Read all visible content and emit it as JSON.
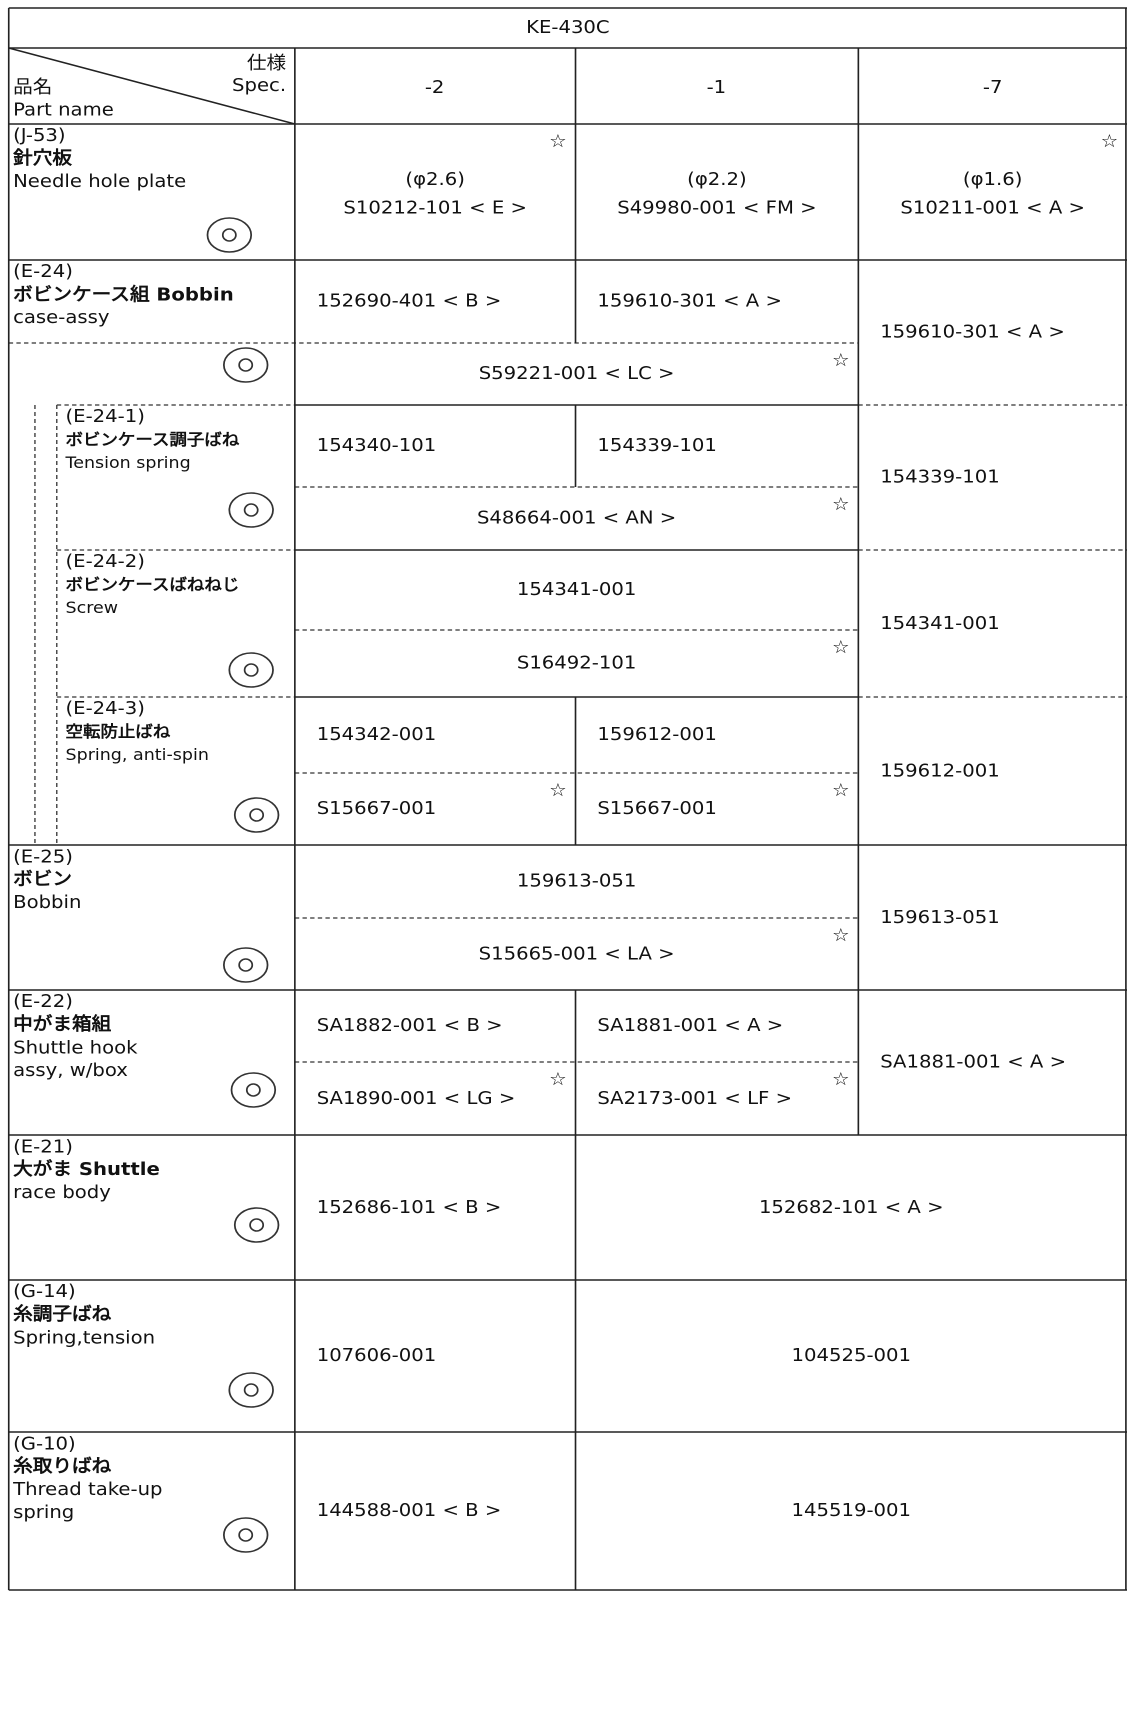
{
  "header": {
    "title": "KE-430C",
    "spec_jp": "仕様",
    "spec_en": "Spec.",
    "part_jp": "品名",
    "part_en": "Part name",
    "columns": [
      "-2",
      "-1",
      "-7"
    ]
  },
  "rows": [
    {
      "label": [
        "(J-53)",
        "針穴板",
        "Needle hole plate"
      ],
      "cells": [
        {
          "spec": "(φ2.6)",
          "text": "S10212-101 < E >",
          "note": "☆"
        },
        {
          "spec": "(φ2.2)",
          "text": "S49980-001 < FM >"
        },
        {
          "spec": "(φ1.6)",
          "text": "S10211-001 < A >",
          "note": "☆"
        }
      ]
    },
    {
      "label": [
        "(E-24)",
        "ボビンケース組 Bobbin",
        "case-assy"
      ],
      "cells": [
        {
          "text": "152690-401 < B >"
        },
        {
          "text": "159610-301 < A >"
        },
        {
          "text": "159610-301 < A >"
        },
        {
          "text": "S59221-001 < LC >",
          "note": "☆"
        }
      ]
    },
    {
      "label": [
        "(E-24-1)",
        "ボビンケース調子ばね",
        "Tension spring"
      ],
      "cells": [
        {
          "text": "154340-101"
        },
        {
          "text": "154339-101"
        },
        {
          "text": "154339-101"
        },
        {
          "text": "S48664-001 < AN >",
          "note": "☆"
        }
      ]
    },
    {
      "label": [
        "(E-24-2)",
        "ボビンケースばねねじ",
        "Screw"
      ],
      "cells": [
        {
          "text": "154341-001"
        },
        {
          "text": "154341-001"
        },
        {
          "text": "S16492-101",
          "note": "☆"
        }
      ]
    },
    {
      "label": [
        "(E-24-3)",
        "空転防止ばね",
        "Spring, anti-spin"
      ],
      "cells": [
        {
          "text": "154342-001"
        },
        {
          "text": "159612-001"
        },
        {
          "text": "159612-001"
        },
        {
          "text": "S15667-001",
          "note": "☆"
        },
        {
          "text": "S15667-001",
          "note": "☆"
        }
      ]
    },
    {
      "label": [
        "(E-25)",
        "ボビン",
        "Bobbin"
      ],
      "cells": [
        {
          "text": "159613-051"
        },
        {
          "text": "159613-051"
        },
        {
          "text": "S15665-001 < LA >",
          "note": "☆"
        }
      ]
    },
    {
      "label": [
        "(E-22)",
        "中がま箱組",
        "Shuttle hook",
        "assy, w/box"
      ],
      "cells": [
        {
          "text": "SA1882-001 < B >"
        },
        {
          "text": "SA1881-001 < A >"
        },
        {
          "text": "SA1881-001 < A >"
        },
        {
          "text": "SA1890-001 < LG >",
          "note": "☆"
        },
        {
          "text": "SA2173-001 < LF >",
          "note": "☆"
        }
      ]
    },
    {
      "label": [
        "(E-21)",
        "大がま Shuttle",
        "race body"
      ],
      "cells": [
        {
          "text": "152686-101 < B >"
        },
        {
          "text": "152682-101 < A >"
        }
      ]
    },
    {
      "label": [
        "(G-14)",
        "糸調子ばね",
        "Spring,tension"
      ],
      "cells": [
        {
          "text": "107606-001"
        },
        {
          "text": "104525-001"
        }
      ]
    },
    {
      "label": [
        "(G-10)",
        "糸取りばね",
        "Thread take-up",
        "spring"
      ],
      "cells": [
        {
          "text": "144588-001 < B >"
        },
        {
          "text": "145519-001"
        }
      ]
    }
  ]
}
